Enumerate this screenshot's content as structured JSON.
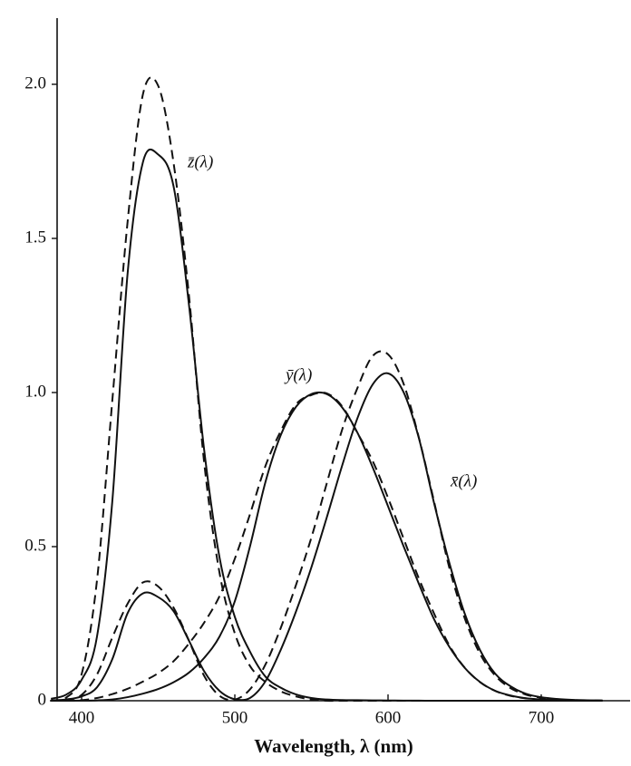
{
  "chart_data": {
    "type": "line",
    "xlabel": "Wavelength, λ (nm)",
    "x": [
      380,
      390,
      400,
      410,
      420,
      430,
      440,
      450,
      460,
      470,
      480,
      490,
      500,
      510,
      520,
      530,
      540,
      550,
      560,
      570,
      580,
      590,
      600,
      610,
      620,
      630,
      640,
      650,
      660,
      670,
      680,
      690,
      700,
      710,
      720,
      730,
      740
    ],
    "xlim": [
      384,
      758
    ],
    "xticks": [
      400,
      500,
      600,
      700
    ],
    "ylim": [
      0,
      2.2
    ],
    "yticks": [
      0,
      0.5,
      {
        "value": 1,
        "label": "1.0"
      },
      1.5,
      {
        "value": 2,
        "label": "2.0"
      }
    ],
    "annotations": [
      "z̄(λ)",
      "ȳ(λ)",
      "x̄(λ)"
    ],
    "series": [
      {
        "color": "#111111",
        "dashed": false,
        "values": [
          0.0014,
          0.0042,
          0.0143,
          0.0435,
          0.1344,
          0.2839,
          0.3483,
          0.3362,
          0.2908,
          0.1954,
          0.0956,
          0.032,
          0.0049,
          0.0093,
          0.0633,
          0.1655,
          0.2904,
          0.4334,
          0.5945,
          0.7621,
          0.9163,
          1.0263,
          1.0622,
          1.0026,
          0.8544,
          0.6424,
          0.4479,
          0.2835,
          0.1649,
          0.0874,
          0.0468,
          0.0227,
          0.0114,
          0.0058,
          0.0029,
          0.0014,
          0.0007
        ]
      },
      {
        "color": "#111111",
        "dashed": false,
        "values": [
          0,
          0.0001,
          0.0004,
          0.0012,
          0.004,
          0.0116,
          0.023,
          0.038,
          0.06,
          0.091,
          0.139,
          0.208,
          0.323,
          0.503,
          0.71,
          0.862,
          0.954,
          0.995,
          0.995,
          0.952,
          0.87,
          0.757,
          0.631,
          0.503,
          0.381,
          0.265,
          0.175,
          0.107,
          0.061,
          0.032,
          0.017,
          0.0082,
          0.0041,
          0.0021,
          0.001,
          0.0005,
          0.0003
        ]
      },
      {
        "color": "#111111",
        "dashed": false,
        "values": [
          0.0065,
          0.0201,
          0.0679,
          0.2074,
          0.6456,
          1.3856,
          1.7471,
          1.7721,
          1.6692,
          1.2876,
          0.813,
          0.4652,
          0.272,
          0.1582,
          0.0782,
          0.0422,
          0.0203,
          0.0087,
          0.0039,
          0.0021,
          0.0017,
          0.0011,
          0.0008,
          0.0003,
          0.0002,
          0,
          0,
          0,
          0,
          0,
          0,
          0,
          0,
          0,
          0,
          0,
          0
        ]
      },
      {
        "color": "#111111",
        "dashed": true,
        "values": [
          0.0002,
          0.0024,
          0.0191,
          0.0847,
          0.2045,
          0.3147,
          0.3837,
          0.3707,
          0.3023,
          0.1956,
          0.0805,
          0.0162,
          0.0038,
          0.0375,
          0.1177,
          0.2365,
          0.3768,
          0.5298,
          0.7052,
          0.8787,
          1.0142,
          1.1185,
          1.124,
          1.0305,
          0.8563,
          0.6475,
          0.4316,
          0.2683,
          0.1526,
          0.0813,
          0.0409,
          0.0199,
          0.0096,
          0.0046,
          0.0022,
          0.001,
          0.0005
        ]
      },
      {
        "color": "#111111",
        "dashed": true,
        "values": [
          0,
          0.0003,
          0.002,
          0.0088,
          0.0214,
          0.0387,
          0.0621,
          0.0895,
          0.1282,
          0.1852,
          0.2536,
          0.3391,
          0.4608,
          0.6067,
          0.7618,
          0.8752,
          0.962,
          0.9918,
          0.9973,
          0.9556,
          0.8689,
          0.7774,
          0.6583,
          0.528,
          0.3981,
          0.2835,
          0.1798,
          0.1076,
          0.0603,
          0.0318,
          0.0159,
          0.0077,
          0.0037,
          0.0018,
          0.0008,
          0.0004,
          0.0002
        ]
      },
      {
        "color": "#111111",
        "dashed": true,
        "values": [
          0.0007,
          0.0105,
          0.086,
          0.3894,
          0.9725,
          1.5535,
          1.9673,
          1.9948,
          1.7454,
          1.3176,
          0.7721,
          0.4153,
          0.2185,
          0.112,
          0.0607,
          0.0305,
          0.0137,
          0.004,
          0,
          0,
          0,
          0,
          0,
          0,
          0,
          0,
          0,
          0,
          0,
          0,
          0,
          0,
          0,
          0,
          0,
          0,
          0
        ]
      }
    ]
  }
}
